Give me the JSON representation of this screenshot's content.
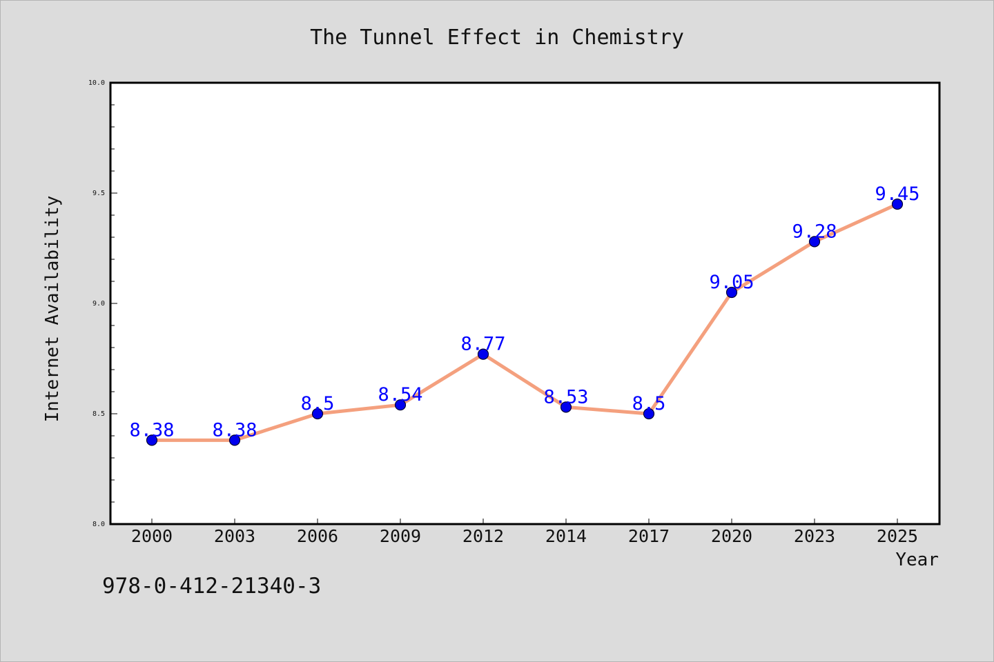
{
  "colors": {
    "background": "#dcdcdc",
    "plot_background": "#ffffff",
    "line": "#f4a07e",
    "marker_fill": "#0000ee",
    "marker_edge": "#000033",
    "data_label": "#0000ff",
    "text": "#111111"
  },
  "footer": {
    "code": "978-0-412-21340-3"
  },
  "chart_data": {
    "type": "line",
    "title": "The Tunnel Effect in Chemistry",
    "xlabel": "Year",
    "ylabel": "Internet Availability",
    "categories": [
      "2000",
      "2003",
      "2006",
      "2009",
      "2012",
      "2014",
      "2017",
      "2020",
      "2023",
      "2025"
    ],
    "series": [
      {
        "values": [
          8.38,
          8.38,
          8.5,
          8.54,
          8.77,
          8.53,
          8.5,
          9.05,
          9.28,
          9.45
        ],
        "data_labels": [
          "8.38",
          "8.38",
          "8.5",
          "8.54",
          "8.77",
          "8.53",
          "8.5",
          "9.05",
          "9.28",
          "9.45"
        ]
      }
    ],
    "ylim": [
      8.0,
      10.0
    ],
    "yticks": [
      "8.0",
      "8.5",
      "9.0",
      "9.5",
      "10.0"
    ],
    "ytick_values": [
      8.0,
      8.5,
      9.0,
      9.5,
      10.0
    ],
    "y_minor_step": 0.1,
    "grid": false,
    "legend": "none"
  }
}
